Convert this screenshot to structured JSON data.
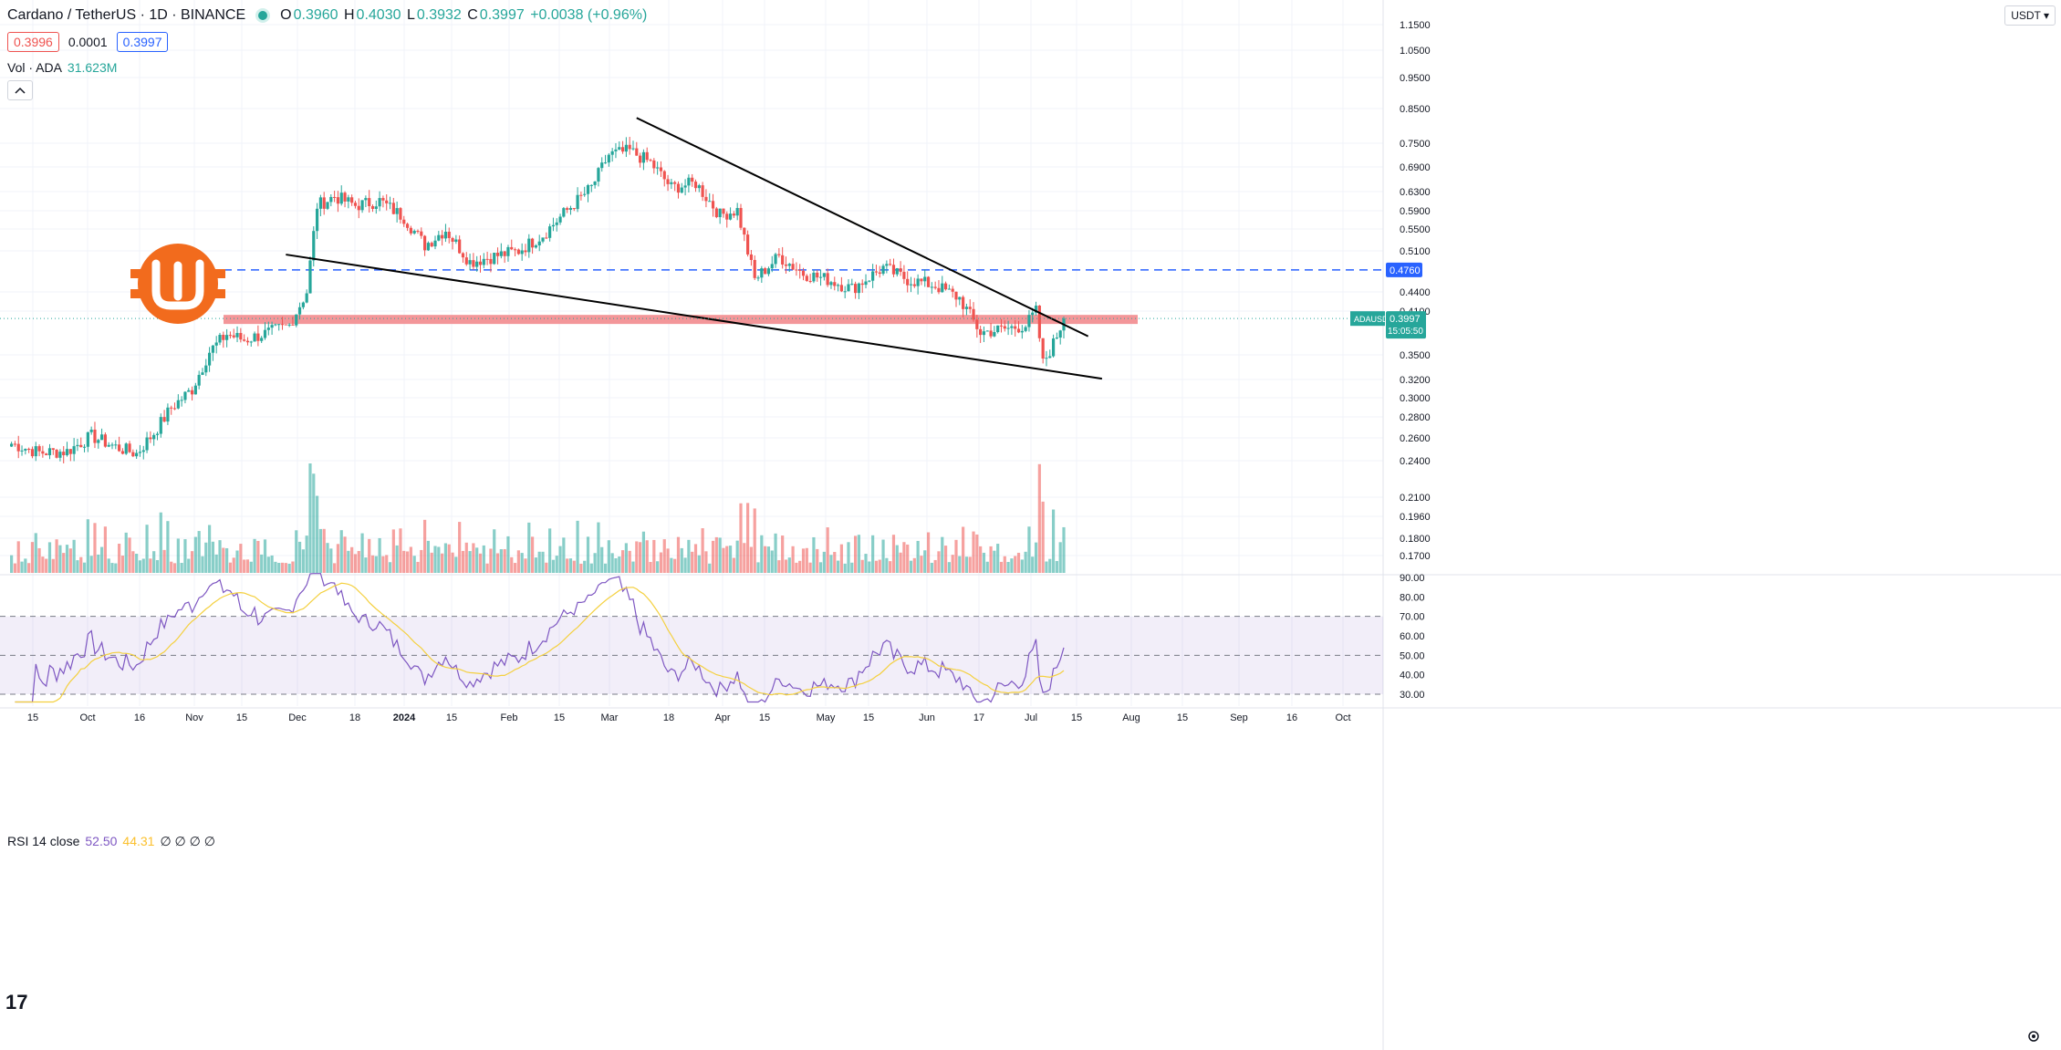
{
  "header": {
    "symbol_title": "Cardano / TetherUS · 1D · BINANCE",
    "ohlc": [
      {
        "label": "O",
        "value": "0.3960"
      },
      {
        "label": "H",
        "value": "0.4030"
      },
      {
        "label": "L",
        "value": "0.3932"
      },
      {
        "label": "C",
        "value": "0.3997"
      }
    ],
    "change": "+0.0038 (+0.96%)",
    "bid": "0.3996",
    "spread": "0.0001",
    "ask": "0.3997"
  },
  "volume_legend": {
    "label": "Vol · ADA",
    "value": "31.623M"
  },
  "rsi_legend": {
    "label": "RSI 14 close",
    "value1": "52.50",
    "value2": "44.31",
    "zeros": "∅ ∅ ∅ ∅"
  },
  "currency_button": "USDT",
  "price_axis": {
    "ticks": [
      "1.1500",
      "1.0500",
      "0.9500",
      "0.8500",
      "0.7500",
      "0.6900",
      "0.6300",
      "0.5900",
      "0.5500",
      "0.5100",
      "0.4400",
      "0.4100",
      "0.3500",
      "0.3200",
      "0.3000",
      "0.2800",
      "0.2600",
      "0.2400",
      "0.2100",
      "0.1960",
      "0.1800",
      "0.1700"
    ],
    "level_tag": "0.4760",
    "current_tag_symbol": "ADAUSDT",
    "current_tag_price": "0.3997",
    "current_tag_timer": "15:05:50"
  },
  "rsi_axis": {
    "ticks": [
      "90.00",
      "80.00",
      "70.00",
      "60.00",
      "50.00",
      "40.00",
      "30.00"
    ]
  },
  "time_axis": {
    "labels": [
      "15",
      "Oct",
      "16",
      "Nov",
      "15",
      "Dec",
      "18",
      "2024",
      "15",
      "Feb",
      "15",
      "Mar",
      "18",
      "Apr",
      "15",
      "May",
      "15",
      "Jun",
      "17",
      "Jul",
      "15",
      "Aug",
      "15",
      "Sep",
      "16",
      "Oct"
    ]
  },
  "colors": {
    "up": "#26a69a",
    "down": "#ef5350",
    "rsi_line": "#7e57c2",
    "rsi_ma": "#f4d03f",
    "resistance_zone": "#f28b8e",
    "dashed_level": "#2962ff",
    "logo": "#f26b1d"
  },
  "icons": {
    "logo": "orange-w-coin-logo",
    "tradingview": "tv-logo-icon",
    "settings": "gear-icon",
    "collapse": "chevron-up-icon"
  },
  "chart_data": {
    "type": "candlestick",
    "title": "Cardano / TetherUS · 1D · BINANCE",
    "y_scale": "log",
    "ylim": [
      0.16,
      1.2
    ],
    "x_range": [
      "2023-09-10",
      "2024-10-20"
    ],
    "horizontal_levels": [
      {
        "price": 0.476,
        "style": "dashed"
      }
    ],
    "resistance_zone": [
      0.392,
      0.405
    ],
    "trendlines": [
      {
        "from": [
          "2024-03-10",
          0.822
        ],
        "to": [
          "2024-07-18",
          0.375
        ]
      },
      {
        "from": [
          "2023-11-30",
          0.503
        ],
        "to": [
          "2024-07-22",
          0.322
        ]
      }
    ],
    "closes_approx": [
      {
        "date": "2023-09-12",
        "close": 0.255
      },
      {
        "date": "2023-09-20",
        "close": 0.247
      },
      {
        "date": "2023-09-28",
        "close": 0.248
      },
      {
        "date": "2023-10-05",
        "close": 0.262
      },
      {
        "date": "2023-10-12",
        "close": 0.252
      },
      {
        "date": "2023-10-18",
        "close": 0.246
      },
      {
        "date": "2023-10-23",
        "close": 0.265
      },
      {
        "date": "2023-10-28",
        "close": 0.29
      },
      {
        "date": "2023-11-03",
        "close": 0.31
      },
      {
        "date": "2023-11-08",
        "close": 0.355
      },
      {
        "date": "2023-11-13",
        "close": 0.378
      },
      {
        "date": "2023-11-18",
        "close": 0.37
      },
      {
        "date": "2023-11-25",
        "close": 0.38
      },
      {
        "date": "2023-12-01",
        "close": 0.39
      },
      {
        "date": "2023-12-06",
        "close": 0.44
      },
      {
        "date": "2023-12-09",
        "close": 0.6
      },
      {
        "date": "2023-12-14",
        "close": 0.62
      },
      {
        "date": "2023-12-20",
        "close": 0.6
      },
      {
        "date": "2023-12-27",
        "close": 0.61
      },
      {
        "date": "2024-01-03",
        "close": 0.575
      },
      {
        "date": "2024-01-09",
        "close": 0.52
      },
      {
        "date": "2024-01-15",
        "close": 0.55
      },
      {
        "date": "2024-01-22",
        "close": 0.49
      },
      {
        "date": "2024-01-29",
        "close": 0.5
      },
      {
        "date": "2024-02-05",
        "close": 0.51
      },
      {
        "date": "2024-02-12",
        "close": 0.54
      },
      {
        "date": "2024-02-19",
        "close": 0.59
      },
      {
        "date": "2024-02-26",
        "close": 0.64
      },
      {
        "date": "2024-03-02",
        "close": 0.72
      },
      {
        "date": "2024-03-08",
        "close": 0.73
      },
      {
        "date": "2024-03-14",
        "close": 0.7
      },
      {
        "date": "2024-03-20",
        "close": 0.64
      },
      {
        "date": "2024-03-27",
        "close": 0.65
      },
      {
        "date": "2024-04-03",
        "close": 0.58
      },
      {
        "date": "2024-04-08",
        "close": 0.59
      },
      {
        "date": "2024-04-13",
        "close": 0.46
      },
      {
        "date": "2024-04-20",
        "close": 0.5
      },
      {
        "date": "2024-04-27",
        "close": 0.47
      },
      {
        "date": "2024-05-04",
        "close": 0.46
      },
      {
        "date": "2024-05-11",
        "close": 0.445
      },
      {
        "date": "2024-05-20",
        "close": 0.48
      },
      {
        "date": "2024-05-27",
        "close": 0.46
      },
      {
        "date": "2024-06-04",
        "close": 0.45
      },
      {
        "date": "2024-06-11",
        "close": 0.43
      },
      {
        "date": "2024-06-17",
        "close": 0.38
      },
      {
        "date": "2024-06-24",
        "close": 0.385
      },
      {
        "date": "2024-06-30",
        "close": 0.39
      },
      {
        "date": "2024-07-03",
        "close": 0.41
      },
      {
        "date": "2024-07-05",
        "close": 0.34
      },
      {
        "date": "2024-07-08",
        "close": 0.365
      },
      {
        "date": "2024-07-11",
        "close": 0.3997
      }
    ]
  }
}
